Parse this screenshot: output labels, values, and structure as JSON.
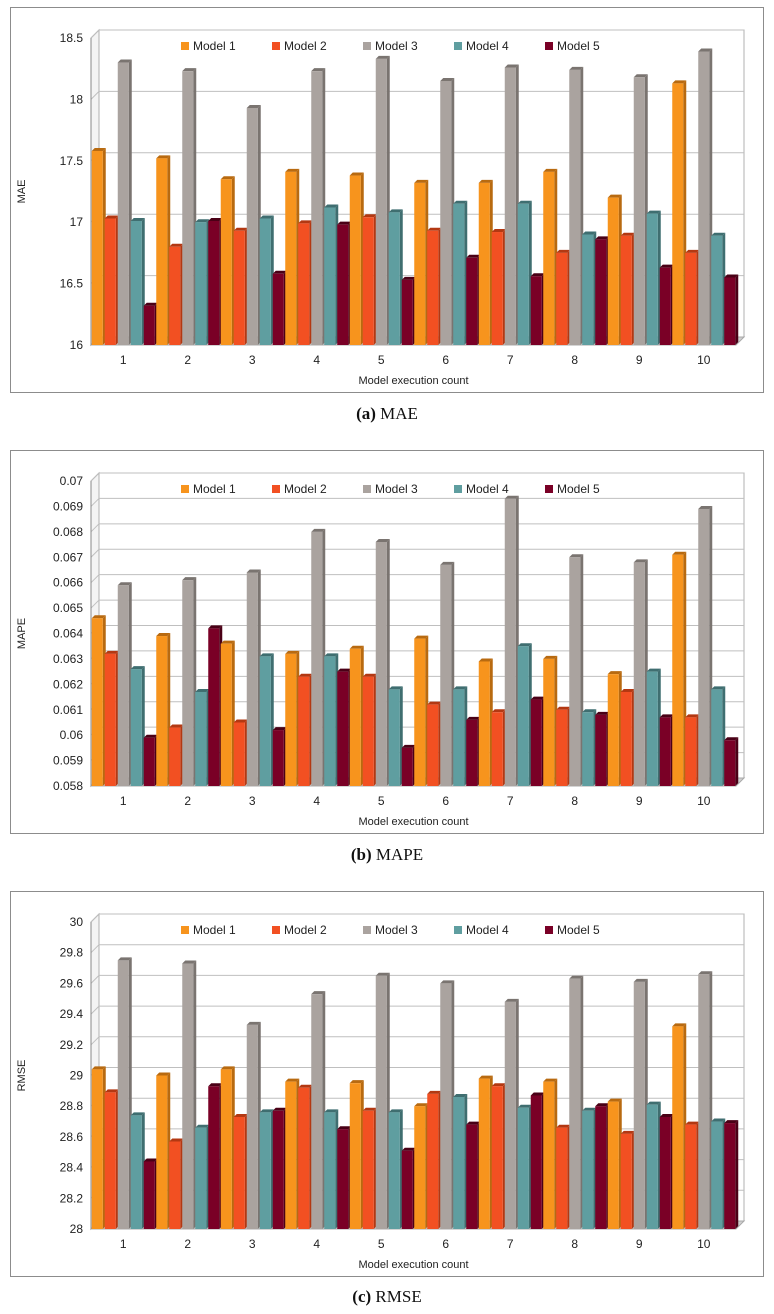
{
  "colors": {
    "series": [
      "#f7941d",
      "#f25022",
      "#aaa39f",
      "#5f9ea0",
      "#7a0026"
    ],
    "series_dark": [
      "#b86a10",
      "#b33812",
      "#7a7470",
      "#3f6e70",
      "#4a0016"
    ],
    "floor": "#d0d0d0",
    "grid": "#bfbfbf"
  },
  "chart_data": [
    {
      "type": "bar",
      "title": "",
      "xlabel": "Model execution count",
      "ylabel": "MAE",
      "ylim": [
        16,
        18.5
      ],
      "yticks": [
        "16",
        "16.5",
        "17",
        "17.5",
        "18",
        "18.5"
      ],
      "categories": [
        "1",
        "2",
        "3",
        "4",
        "5",
        "6",
        "7",
        "8",
        "9",
        "10"
      ],
      "series": [
        {
          "name": "Model 1",
          "values": [
            17.58,
            17.52,
            17.35,
            17.41,
            17.38,
            17.32,
            17.32,
            17.41,
            17.2,
            18.13
          ]
        },
        {
          "name": "Model 2",
          "values": [
            17.03,
            16.8,
            16.93,
            16.99,
            17.04,
            16.93,
            16.92,
            16.75,
            16.89,
            16.75
          ]
        },
        {
          "name": "Model 3",
          "values": [
            18.3,
            18.23,
            17.93,
            18.23,
            18.33,
            18.15,
            18.26,
            18.24,
            18.18,
            18.39
          ]
        },
        {
          "name": "Model 4",
          "values": [
            17.01,
            17.0,
            17.03,
            17.12,
            17.08,
            17.15,
            17.15,
            16.9,
            17.07,
            16.89
          ]
        },
        {
          "name": "Model 5",
          "values": [
            16.32,
            17.01,
            16.58,
            16.98,
            16.53,
            16.71,
            16.56,
            16.86,
            16.63,
            16.55
          ]
        }
      ]
    },
    {
      "type": "bar",
      "title": "",
      "xlabel": "Model execution count",
      "ylabel": "MAPE",
      "ylim": [
        0.058,
        0.07
      ],
      "yticks": [
        "0.058",
        "0.059",
        "0.06",
        "0.061",
        "0.062",
        "0.063",
        "0.064",
        "0.065",
        "0.066",
        "0.067",
        "0.068",
        "0.069",
        "0.07"
      ],
      "categories": [
        "1",
        "2",
        "3",
        "4",
        "5",
        "6",
        "7",
        "8",
        "9",
        "10"
      ],
      "series": [
        {
          "name": "Model 1",
          "values": [
            0.0646,
            0.0639,
            0.0636,
            0.0632,
            0.0634,
            0.0638,
            0.0629,
            0.063,
            0.0624,
            0.0671
          ]
        },
        {
          "name": "Model 2",
          "values": [
            0.0632,
            0.0603,
            0.0605,
            0.0623,
            0.0623,
            0.0612,
            0.0609,
            0.061,
            0.0617,
            0.0607
          ]
        },
        {
          "name": "Model 3",
          "values": [
            0.0659,
            0.0661,
            0.0664,
            0.068,
            0.0676,
            0.0667,
            0.0693,
            0.067,
            0.0668,
            0.0689
          ]
        },
        {
          "name": "Model 4",
          "values": [
            0.0626,
            0.0617,
            0.0631,
            0.0631,
            0.0618,
            0.0618,
            0.0635,
            0.0609,
            0.0625,
            0.0618
          ]
        },
        {
          "name": "Model 5",
          "values": [
            0.0599,
            0.0642,
            0.0602,
            0.0625,
            0.0595,
            0.0606,
            0.0614,
            0.0608,
            0.0607,
            0.0598
          ]
        }
      ]
    },
    {
      "type": "bar",
      "title": "",
      "xlabel": "Model execution count",
      "ylabel": "RMSE",
      "ylim": [
        28,
        30
      ],
      "yticks": [
        "28",
        "28.2",
        "28.4",
        "28.6",
        "28.8",
        "29",
        "29.2",
        "29.4",
        "29.6",
        "29.8",
        "30"
      ],
      "categories": [
        "1",
        "2",
        "3",
        "4",
        "5",
        "6",
        "7",
        "8",
        "9",
        "10"
      ],
      "series": [
        {
          "name": "Model 1",
          "values": [
            29.04,
            29.0,
            29.04,
            28.96,
            28.95,
            28.8,
            28.98,
            28.96,
            28.83,
            29.32
          ]
        },
        {
          "name": "Model 2",
          "values": [
            28.89,
            28.57,
            28.73,
            28.92,
            28.77,
            28.88,
            28.93,
            28.66,
            28.62,
            28.68
          ]
        },
        {
          "name": "Model 3",
          "values": [
            29.75,
            29.73,
            29.33,
            29.53,
            29.65,
            29.6,
            29.48,
            29.63,
            29.61,
            29.66
          ]
        },
        {
          "name": "Model 4",
          "values": [
            28.74,
            28.66,
            28.76,
            28.76,
            28.76,
            28.86,
            28.79,
            28.77,
            28.81,
            28.7
          ]
        },
        {
          "name": "Model 5",
          "values": [
            28.44,
            28.93,
            28.77,
            28.65,
            28.51,
            28.68,
            28.87,
            28.8,
            28.73,
            28.69
          ]
        }
      ]
    }
  ],
  "captions": [
    {
      "label": "(a)",
      "text": "MAE"
    },
    {
      "label": "(b)",
      "text": "MAPE"
    },
    {
      "label": "(c)",
      "text": "RMSE"
    }
  ]
}
